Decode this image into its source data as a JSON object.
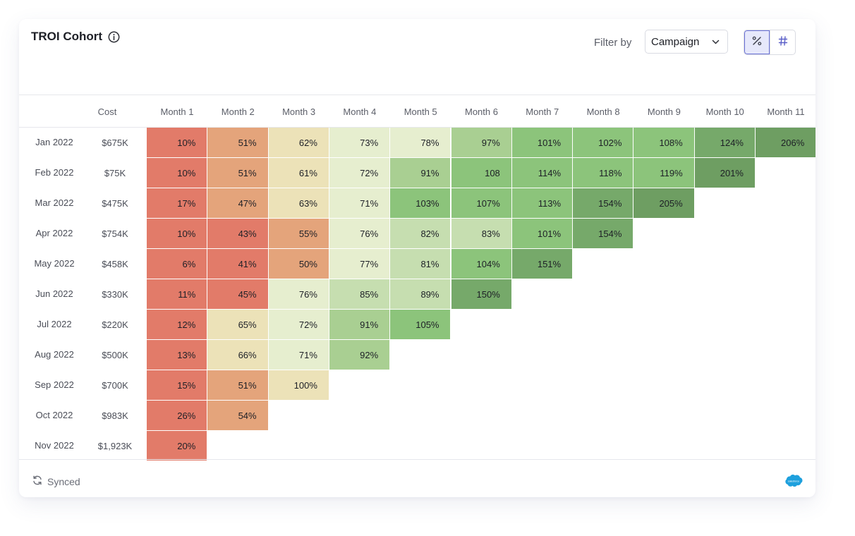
{
  "widget": {
    "title": "TROI Cohort",
    "info_icon": "info-circle-icon",
    "filter_label": "Filter by",
    "filter_value": "Campaign",
    "toggle": {
      "active": "percent",
      "options": [
        "percent-icon",
        "hash-icon"
      ]
    },
    "footer_status": "Synced",
    "footer_icon": "sync-icon",
    "integration_logo": "salesforce-logo",
    "logo_text": "salesforce"
  },
  "table": {
    "cost_header": "Cost",
    "months": [
      "Month 1",
      "Month 2",
      "Month 3",
      "Month 4",
      "Month 5",
      "Month 6",
      "Month 7",
      "Month 8",
      "Month 9",
      "Month 10",
      "Month 11"
    ],
    "rows": [
      {
        "label": "Jan 2022",
        "cost": "$675K",
        "cells": [
          "10%",
          "51%",
          "62%",
          "73%",
          "78%",
          "97%",
          "101%",
          "102%",
          "108%",
          "124%",
          "206%"
        ]
      },
      {
        "label": "Feb 2022",
        "cost": "$75K",
        "cells": [
          "10%",
          "51%",
          "61%",
          "72%",
          "91%",
          "108",
          "114%",
          "118%",
          "119%",
          "201%"
        ]
      },
      {
        "label": "Mar 2022",
        "cost": "$475K",
        "cells": [
          "17%",
          "47%",
          "63%",
          "71%",
          "103%",
          "107%",
          "113%",
          "154%",
          "205%"
        ]
      },
      {
        "label": "Apr 2022",
        "cost": "$754K",
        "cells": [
          "10%",
          "43%",
          "55%",
          "76%",
          "82%",
          "83%",
          "101%",
          "154%"
        ]
      },
      {
        "label": "May 2022",
        "cost": "$458K",
        "cells": [
          "6%",
          "41%",
          "50%",
          "77%",
          "81%",
          "104%",
          "151%"
        ]
      },
      {
        "label": "Jun 2022",
        "cost": "$330K",
        "cells": [
          "11%",
          "45%",
          "76%",
          "85%",
          "89%",
          "150%"
        ]
      },
      {
        "label": "Jul 2022",
        "cost": "$220K",
        "cells": [
          "12%",
          "65%",
          "72%",
          "91%",
          "105%"
        ]
      },
      {
        "label": "Aug 2022",
        "cost": "$500K",
        "cells": [
          "13%",
          "66%",
          "71%",
          "92%"
        ]
      },
      {
        "label": "Sep 2022",
        "cost": "$700K",
        "cells": [
          "15%",
          "51%",
          "100%"
        ]
      },
      {
        "label": "Oct 2022",
        "cost": "$983K",
        "cells": [
          "26%",
          "54%"
        ]
      },
      {
        "label": "Nov 2022",
        "cost": "$1,923K",
        "cells": [
          "20%"
        ]
      }
    ],
    "cell_colors": [
      [
        "#e27b69",
        "#e4a47b",
        "#ece2b8",
        "#e6eecf",
        "#e6eecf",
        "#a9cf92",
        "#8cc47b",
        "#8cc47b",
        "#8cc47b",
        "#76a96a",
        "#6e9e62"
      ],
      [
        "#e27b69",
        "#e4a47b",
        "#ece2b8",
        "#e6eecf",
        "#a9cf92",
        "#8cc47b",
        "#8cc47b",
        "#8cc47b",
        "#8cc47b",
        "#6e9e62"
      ],
      [
        "#e27b69",
        "#e4a47b",
        "#ece2b8",
        "#e6eecf",
        "#8cc47b",
        "#8cc47b",
        "#8cc47b",
        "#76a96a",
        "#6e9e62"
      ],
      [
        "#e27b69",
        "#e27b69",
        "#e4a47b",
        "#e6eecf",
        "#c6deb0",
        "#c6deb0",
        "#8cc47b",
        "#76a96a"
      ],
      [
        "#e27b69",
        "#e27b69",
        "#e4a47b",
        "#e6eecf",
        "#c6deb0",
        "#8cc47b",
        "#76a96a"
      ],
      [
        "#e27b69",
        "#e27b69",
        "#e6eecf",
        "#c6deb0",
        "#c6deb0",
        "#76a96a"
      ],
      [
        "#e27b69",
        "#ece2b8",
        "#e6eecf",
        "#a9cf92",
        "#8cc47b"
      ],
      [
        "#e27b69",
        "#ece2b8",
        "#e6eecf",
        "#a9cf92"
      ],
      [
        "#e27b69",
        "#e4a47b",
        "#ece2b8"
      ],
      [
        "#e27b69",
        "#e4a47b"
      ],
      [
        "#e27b69"
      ]
    ]
  }
}
